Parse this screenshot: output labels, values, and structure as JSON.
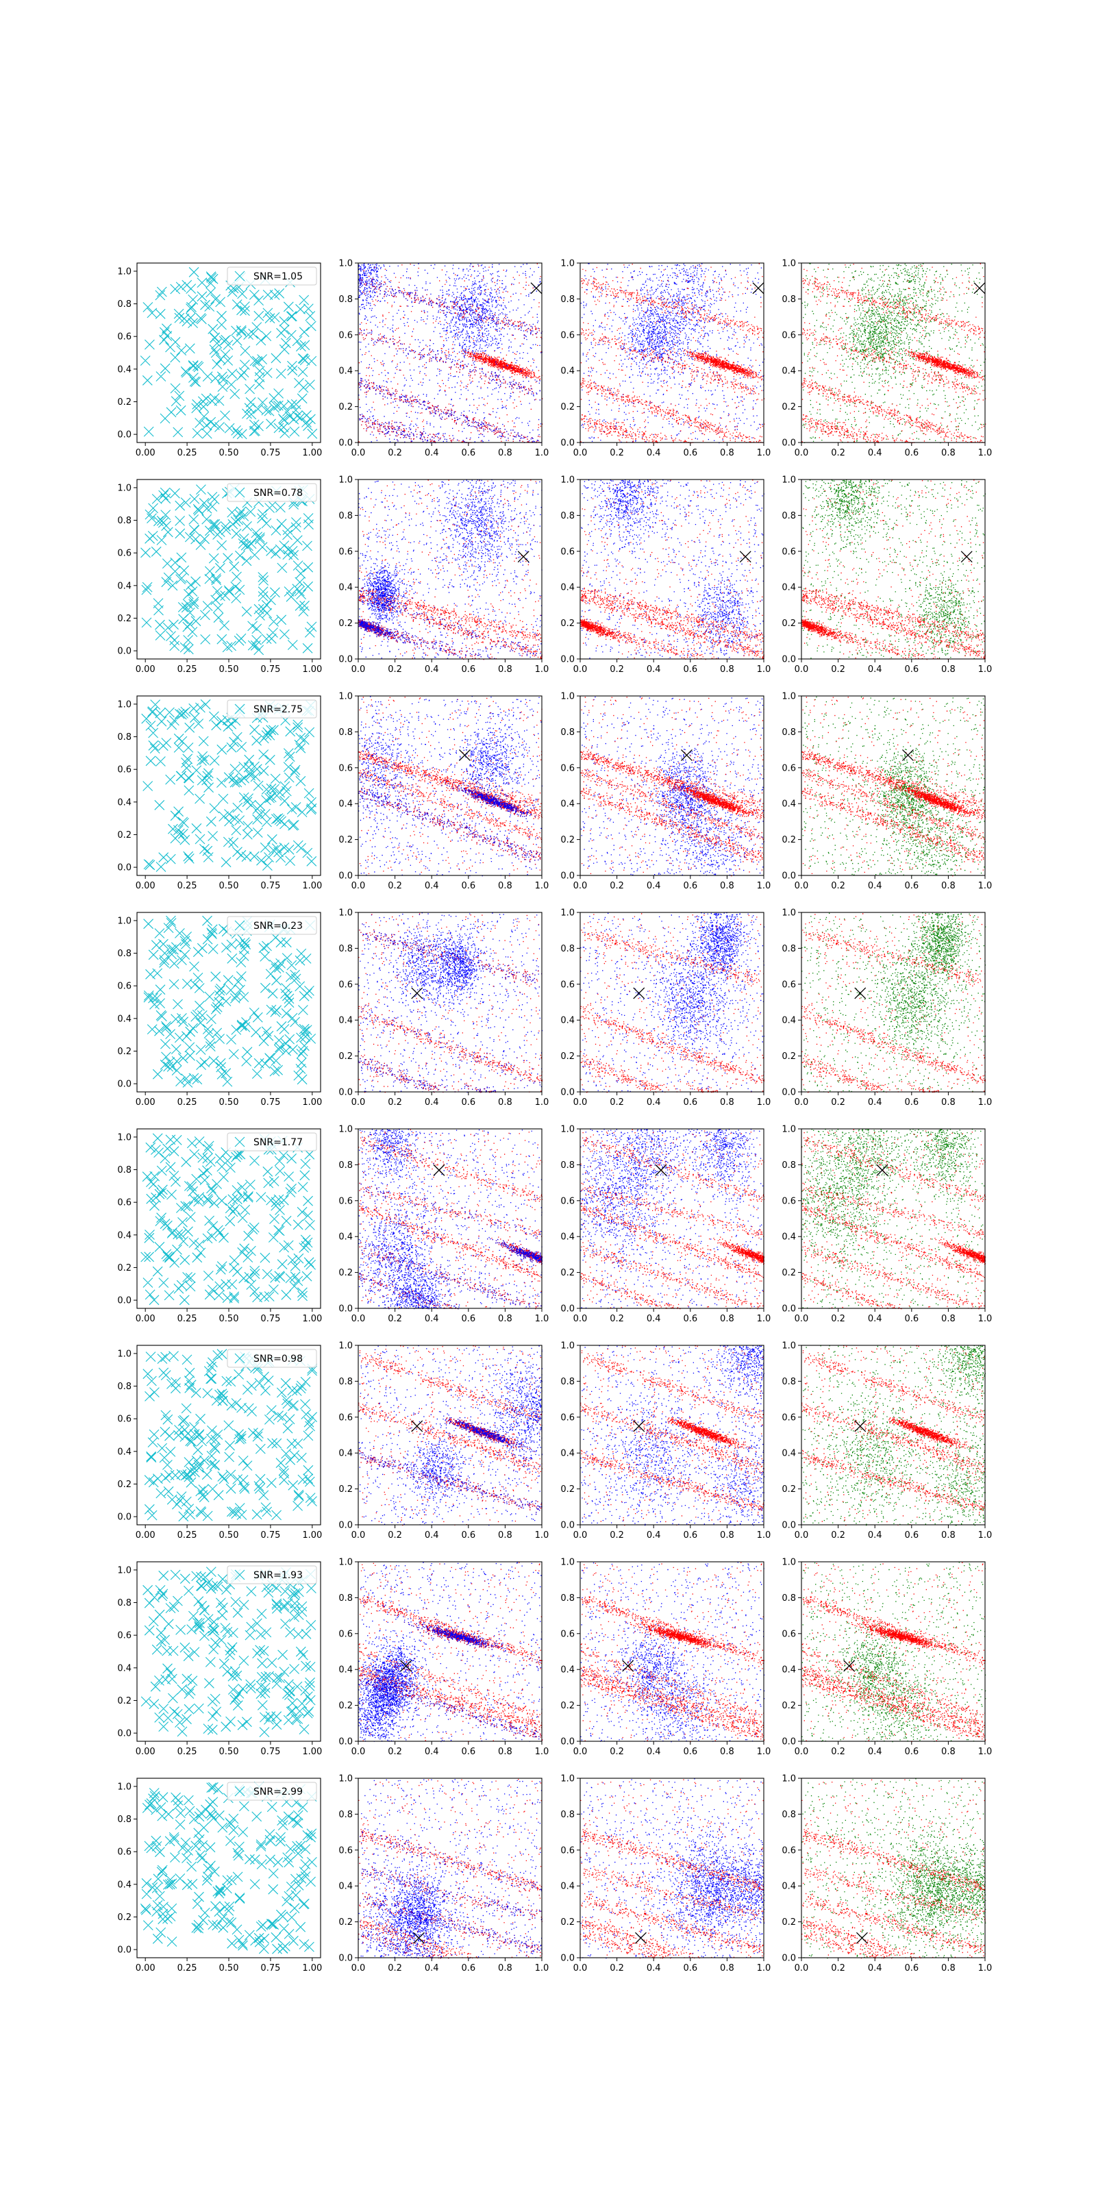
{
  "figure": {
    "background": "#ffffff",
    "rows": 8,
    "columns": 4
  },
  "colors": {
    "cross_cyan": "#17becf",
    "red": "#ff0000",
    "blue": "#0000ff",
    "green": "#008000",
    "marker": "#000000"
  },
  "chart_data": [
    {
      "row": 0,
      "snr_label": "SNR=1.05",
      "marker_xy": [
        0.97,
        0.86
      ]
    },
    {
      "row": 1,
      "snr_label": "SNR=0.78",
      "marker_xy": [
        0.9,
        0.57
      ]
    },
    {
      "row": 2,
      "snr_label": "SNR=2.75",
      "marker_xy": [
        0.58,
        0.67
      ]
    },
    {
      "row": 3,
      "snr_label": "SNR=0.23",
      "marker_xy": [
        0.32,
        0.55
      ]
    },
    {
      "row": 4,
      "snr_label": "SNR=1.77",
      "marker_xy": [
        0.44,
        0.77
      ]
    },
    {
      "row": 5,
      "snr_label": "SNR=0.98",
      "marker_xy": [
        0.32,
        0.55
      ]
    },
    {
      "row": 6,
      "snr_label": "SNR=1.93",
      "marker_xy": [
        0.26,
        0.42
      ]
    },
    {
      "row": 7,
      "snr_label": "SNR=2.99",
      "marker_xy": [
        0.33,
        0.11
      ]
    }
  ],
  "axes": {
    "col0": {
      "type": "scatter",
      "xlim": [
        -0.05,
        1.05
      ],
      "ylim": [
        -0.05,
        1.05
      ],
      "xticks": [
        "0.00",
        "0.25",
        "0.50",
        "0.75",
        "1.00"
      ],
      "yticks": [
        "0.0",
        "0.2",
        "0.4",
        "0.6",
        "0.8",
        "1.0"
      ],
      "legend_placement": "upper-right",
      "marker": "x",
      "grid": false
    },
    "col_other": {
      "type": "scatter",
      "xlim": [
        0,
        1
      ],
      "ylim": [
        0,
        1
      ],
      "xticks": [
        "0.0",
        "0.2",
        "0.4",
        "0.6",
        "0.8",
        "1.0"
      ],
      "yticks": [
        "0.0",
        "0.2",
        "0.4",
        "0.6",
        "0.8",
        "1.0"
      ],
      "grid": false
    },
    "series_colors": [
      [
        "red",
        "blue"
      ],
      [
        "red",
        "blue"
      ],
      [
        "red",
        "green"
      ]
    ]
  }
}
